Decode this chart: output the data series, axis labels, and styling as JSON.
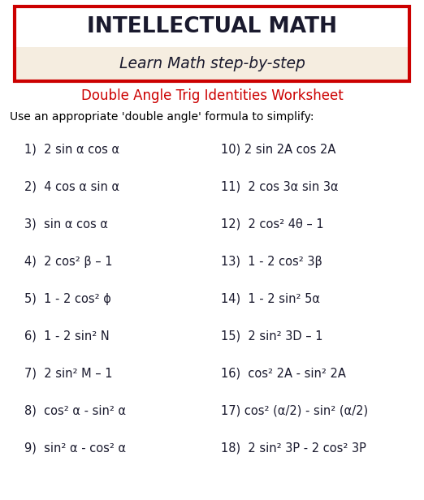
{
  "title_line1": "INTELLECTUAL MATH",
  "title_line2": "Learn Math step-by-step",
  "subtitle": "Double Angle Trig Identities Worksheet",
  "instruction": "Use an appropriate 'double angle' formula to simplify:",
  "left_items": [
    "1)  2 sin α cos α",
    "2)  4 cos α sin α",
    "3)  sin α cos α",
    "4)  2 cos² β – 1",
    "5)  1 - 2 cos² ϕ",
    "6)  1 - 2 sin² N",
    "7)  2 sin² M – 1",
    "8)  cos² α - sin² α",
    "9)  sin² α - cos² α"
  ],
  "right_items": [
    "10) 2 sin 2A cos 2A",
    "11)  2 cos 3α sin 3α",
    "12)  2 cos² 4θ – 1",
    "13)  1 - 2 cos² 3β",
    "14)  1 - 2 sin² 5α",
    "15)  2 sin² 3D – 1",
    "16)  cos² 2A - sin² 2A",
    "17) cos² (α/2) - sin² (α/2)",
    "18)  2 sin² 3P - 2 cos² 3P"
  ],
  "bg_color": "#ffffff",
  "title_top_bg": "#ffffff",
  "title_bot_bg": "#f5ede0",
  "title_box_edge_color": "#cc0000",
  "title_color": "#1a1a2e",
  "subtitle_color": "#cc0000",
  "instruction_color": "#000000",
  "item_color": "#1a1a2e",
  "title_fontsize": 19,
  "title_italic_fontsize": 13.5,
  "subtitle_fontsize": 12,
  "instruction_fontsize": 10,
  "item_fontsize": 10.5
}
